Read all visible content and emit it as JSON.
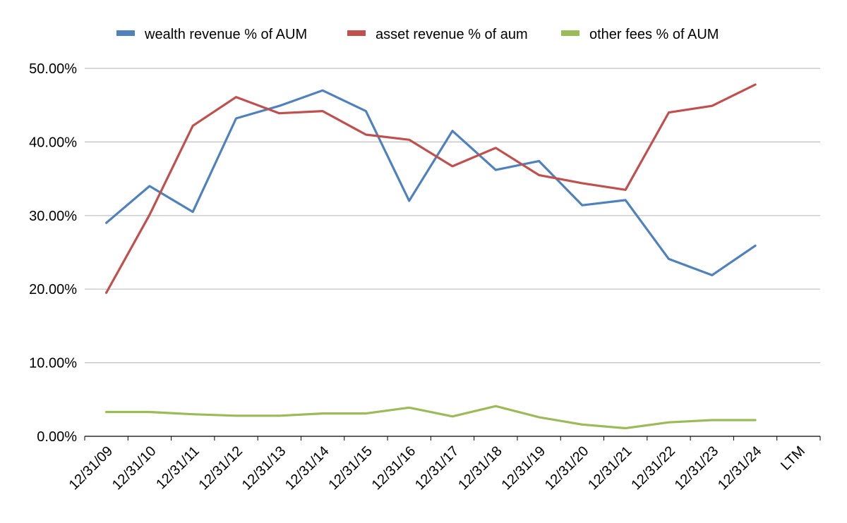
{
  "chart_data": {
    "type": "line",
    "title": "",
    "xlabel": "",
    "ylabel": "",
    "categories": [
      "12/31/09",
      "12/31/10",
      "12/31/11",
      "12/31/12",
      "12/31/13",
      "12/31/14",
      "12/31/15",
      "12/31/16",
      "12/31/17",
      "12/31/18",
      "12/31/19",
      "12/31/20",
      "12/31/21",
      "12/31/22",
      "12/31/23",
      "12/31/24",
      "LTM"
    ],
    "ylim": [
      0,
      50
    ],
    "yticks": [
      0,
      10,
      20,
      30,
      40,
      50
    ],
    "ytick_labels": [
      "0.00%",
      "10.00%",
      "20.00%",
      "30.00%",
      "40.00%",
      "50.00%"
    ],
    "grid": true,
    "legend_position": "top",
    "series": [
      {
        "name": "wealth revenue % of AUM",
        "color": "#4f81bd",
        "values": [
          29.0,
          34.0,
          30.5,
          43.2,
          44.9,
          47.0,
          44.2,
          32.0,
          41.5,
          36.2,
          37.4,
          31.4,
          32.1,
          24.1,
          21.9,
          25.9,
          null
        ]
      },
      {
        "name": "asset revenue % of aum",
        "color": "#c0504d",
        "values": [
          19.5,
          30.1,
          42.2,
          46.1,
          43.9,
          44.2,
          41.0,
          40.3,
          36.7,
          39.2,
          35.5,
          34.4,
          33.5,
          44.0,
          44.9,
          47.8,
          null
        ]
      },
      {
        "name": "other fees % of AUM",
        "color": "#9bbb59",
        "values": [
          3.3,
          3.3,
          3.0,
          2.8,
          2.8,
          3.1,
          3.1,
          3.9,
          2.7,
          4.1,
          2.6,
          1.6,
          1.1,
          1.9,
          2.2,
          2.2,
          null
        ]
      }
    ]
  }
}
